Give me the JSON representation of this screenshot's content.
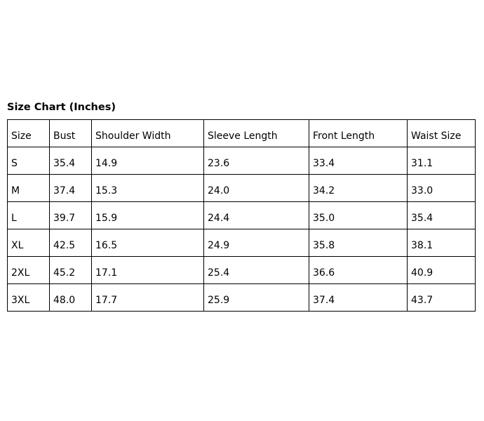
{
  "title": "Size Chart (Inches)",
  "headers": [
    "Size",
    "Bust",
    "Shoulder Width",
    "Sleeve Length",
    "Front Length",
    "Waist Size"
  ],
  "rows": [
    [
      "S",
      "35.4",
      "14.9",
      "23.6",
      "33.4",
      "31.1"
    ],
    [
      "M",
      "37.4",
      "15.3",
      "24.0",
      "34.2",
      "33.0"
    ],
    [
      "L",
      "39.7",
      "15.9",
      "24.4",
      "35.0",
      "35.4"
    ],
    [
      "XL",
      "42.5",
      "16.5",
      "24.9",
      "35.8",
      "38.1"
    ],
    [
      "2XL",
      "45.2",
      "17.1",
      "25.4",
      "36.6",
      "40.9"
    ],
    [
      "3XL",
      "48.0",
      "17.7",
      "25.9",
      "37.4",
      "43.7"
    ]
  ]
}
